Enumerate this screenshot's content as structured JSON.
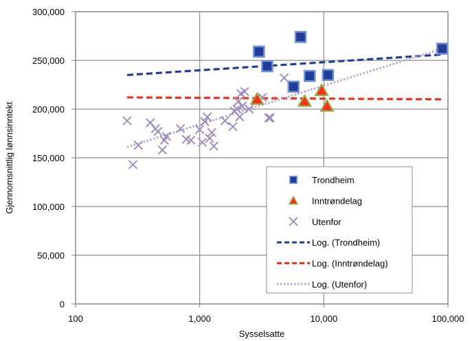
{
  "chart_data": {
    "type": "scatter",
    "xlabel": "Sysselsatte",
    "ylabel": "Gjennomsnittlig lønnsinntekt",
    "x_scale": "log",
    "xlim": [
      100,
      100000
    ],
    "ylim": [
      0,
      300000
    ],
    "x_ticks": [
      100,
      1000,
      10000,
      100000
    ],
    "x_tick_labels": [
      "100",
      "1,000",
      "10,000",
      "100,000"
    ],
    "y_ticks": [
      0,
      50000,
      100000,
      150000,
      200000,
      250000,
      300000
    ],
    "y_tick_labels": [
      "0",
      "50,000",
      "100,000",
      "150,000",
      "200,000",
      "250,000",
      "300,000"
    ],
    "grid": true,
    "legend_position": "bottom-right",
    "series": [
      {
        "name": "Trondheim",
        "marker": "square",
        "color": "#1f3d99",
        "x": [
          3000,
          3500,
          5700,
          6500,
          7700,
          10800,
          90000
        ],
        "y": [
          259000,
          244000,
          223000,
          274000,
          234000,
          235000,
          262000
        ]
      },
      {
        "name": "Inntrøndelag",
        "marker": "triangle",
        "color": "#ff2a1a",
        "x": [
          2900,
          7000,
          9600,
          10600
        ],
        "y": [
          210000,
          208000,
          219000,
          203000
        ]
      },
      {
        "name": "Utenfor",
        "marker": "x",
        "color": "#9f8fc0",
        "x": [
          260,
          290,
          320,
          400,
          440,
          460,
          500,
          520,
          540,
          700,
          780,
          850,
          1000,
          1050,
          1100,
          1150,
          1200,
          1250,
          1300,
          1600,
          1850,
          1900,
          2000,
          2050,
          2100,
          2150,
          2200,
          2300,
          2500,
          3200,
          3600,
          3700,
          4800
        ],
        "y": [
          188000,
          143000,
          163000,
          186000,
          180000,
          177000,
          158000,
          168000,
          172000,
          180000,
          169000,
          168000,
          179000,
          166000,
          187000,
          192000,
          170000,
          176000,
          162000,
          188000,
          182000,
          198000,
          200000,
          208000,
          192000,
          216000,
          203000,
          218000,
          200000,
          212000,
          191000,
          191000,
          232000
        ]
      }
    ],
    "trendlines": [
      {
        "name": "Log. (Trondheim)",
        "series": "Trondheim",
        "type": "log",
        "style": "dashed",
        "color": "#1f3d99",
        "x": [
          260,
          90000
        ],
        "y": [
          235000,
          256000
        ]
      },
      {
        "name": "Log. (Inntrøndelag)",
        "series": "Inntrøndelag",
        "type": "log",
        "style": "dashed",
        "color": "#ff2a1a",
        "x": [
          260,
          90000
        ],
        "y": [
          212000,
          210000
        ]
      },
      {
        "name": "Log. (Utenfor)",
        "series": "Utenfor",
        "type": "log",
        "style": "dotted",
        "color": "#b3a8d6",
        "x": [
          260,
          90000
        ],
        "y": [
          161000,
          262000
        ]
      }
    ]
  }
}
